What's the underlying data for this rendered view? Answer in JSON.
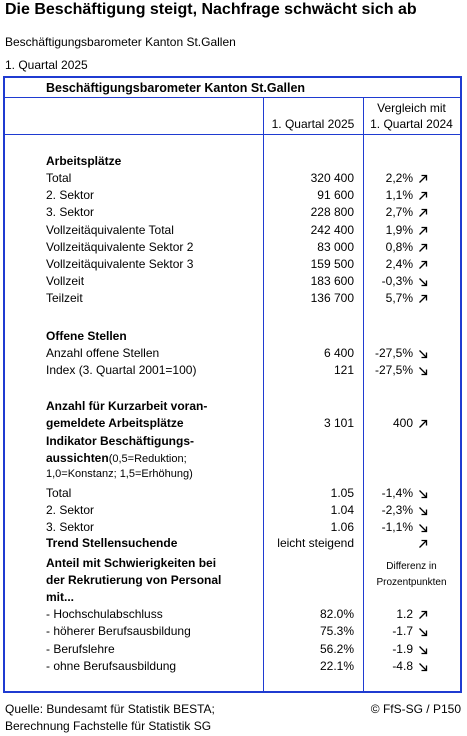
{
  "title": "Die Beschäftigung steigt, Nachfrage schwächt sich ab",
  "subtitle": "Beschäftigungsbarometer Kanton St.Gallen",
  "period": "1. Quartal 2025",
  "table": {
    "title": "Beschäftigungsbarometer Kanton St.Gallen",
    "col1_header": "1. Quartal 2025",
    "col2_header_line1": "Vergleich mit",
    "col2_header_line2": "1. Quartal 2024",
    "diff_note_line1": "Differenz in",
    "diff_note_line2": "Prozentpunkten",
    "sections": {
      "arbeitsplaetze": "Arbeitsplätze",
      "offene_stellen": "Offene Stellen",
      "kurzarbeit_line1": "Anzahl für Kurzarbeit voran-",
      "kurzarbeit_line2": "gemeldete Arbeitsplätze",
      "indikator_line1": "Indikator Beschäftigungs-",
      "indikator_line2": "aussichten",
      "indikator_note_a": "(0,5=Reduktion;",
      "indikator_note_b": "1,0=Konstanz; 1,5=Erhöhung)",
      "trend": "Trend Stellensuchende",
      "anteil_line1": "Anteil mit Schwierigkeiten bei",
      "anteil_line2": "der Rekrutierung von Personal",
      "anteil_line3": "mit..."
    },
    "arbeitsplaetze_rows": [
      {
        "label": "Total",
        "value": "320 400",
        "change": "2,2%",
        "dir": "up"
      },
      {
        "label": "2. Sektor",
        "value": "91 600",
        "change": "1,1%",
        "dir": "up"
      },
      {
        "label": "3. Sektor",
        "value": "228 800",
        "change": "2,7%",
        "dir": "up"
      },
      {
        "label": "Vollzeitäquivalente Total",
        "value": "242 400",
        "change": "1,9%",
        "dir": "up"
      },
      {
        "label": "Vollzeitäquivalente Sektor 2",
        "value": "83 000",
        "change": "0,8%",
        "dir": "up"
      },
      {
        "label": "Vollzeitäquivalente Sektor 3",
        "value": "159 500",
        "change": "2,4%",
        "dir": "up"
      },
      {
        "label": "Vollzeit",
        "value": "183 600",
        "change": "-0,3%",
        "dir": "down"
      },
      {
        "label": "Teilzeit",
        "value": "136 700",
        "change": "5,7%",
        "dir": "up"
      }
    ],
    "offene_rows": [
      {
        "label": "Anzahl offene Stellen",
        "value": "6 400",
        "change": "-27,5%",
        "dir": "down"
      },
      {
        "label": "Index (3. Quartal 2001=100)",
        "value": "121",
        "change": "-27,5%",
        "dir": "down"
      }
    ],
    "kurzarbeit": {
      "value": "3 101",
      "change": "400",
      "dir": "up"
    },
    "indikator_rows": [
      {
        "label": "Total",
        "value": "1.05",
        "change": "-1,4%",
        "dir": "down"
      },
      {
        "label": "2. Sektor",
        "value": "1.04",
        "change": "-2,3%",
        "dir": "down"
      },
      {
        "label": "3. Sektor",
        "value": "1.06",
        "change": "-1,1%",
        "dir": "down"
      }
    ],
    "trend": {
      "value": "leicht steigend",
      "dir": "up"
    },
    "anteil_rows": [
      {
        "label": "- Hochschulabschluss",
        "value": "82.0%",
        "change": "1.2",
        "dir": "up"
      },
      {
        "label": "- höherer Berufsausbildung",
        "value": "75.3%",
        "change": "-1.7",
        "dir": "down"
      },
      {
        "label": "- Berufslehre",
        "value": "56.2%",
        "change": "-1.9",
        "dir": "down"
      },
      {
        "label": "- ohne Berufsausbildung",
        "value": "22.1%",
        "change": "-4.8",
        "dir": "down"
      }
    ]
  },
  "footer": {
    "source_line1": "Quelle: Bundesamt für Statistik BESTA;",
    "source_line2": "Berechnung Fachstelle für Statistik SG",
    "copyright": "© FfS-SG / P150"
  }
}
